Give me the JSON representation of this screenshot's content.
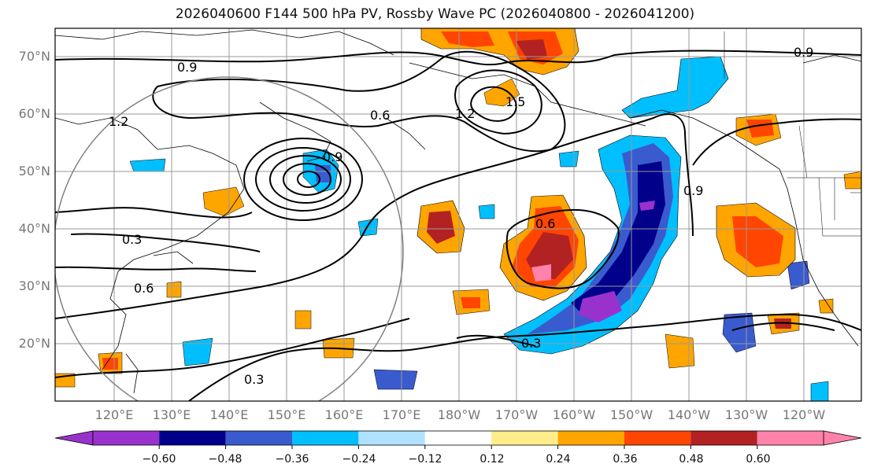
{
  "title": "2026040600 F144 500 hPa PV, Rossby Wave PC (2026040800 - 2026041200)",
  "map": {
    "lat_labels": [
      "70°N",
      "60°N",
      "50°N",
      "40°N",
      "30°N",
      "20°N"
    ],
    "lon_labels": [
      "120°E",
      "130°E",
      "140°E",
      "150°E",
      "160°E",
      "170°E",
      "180°W",
      "170°W",
      "160°W",
      "150°W",
      "140°W",
      "130°W",
      "120°W"
    ],
    "contour_labels": [
      "0.9",
      "0.6",
      "1.2",
      "1.5",
      "0.9",
      "0.3",
      "0.6",
      "0.6",
      "0.3",
      "0.9",
      "0.3",
      "0.9",
      "1.2"
    ]
  },
  "colorbar": {
    "ticks": [
      "−0.60",
      "−0.48",
      "−0.36",
      "−0.24",
      "−0.12",
      "0.12",
      "0.24",
      "0.36",
      "0.48",
      "0.60"
    ],
    "colors": [
      "#9932CC",
      "#00008B",
      "#3A5BCE",
      "#00BFFF",
      "#B0E2FF",
      "#FFFFFF",
      "#FFEC8B",
      "#FFA500",
      "#FF4500",
      "#B22222",
      "#FF82AB"
    ],
    "under_color": "#9932CC",
    "over_color": "#FF82AB"
  }
}
